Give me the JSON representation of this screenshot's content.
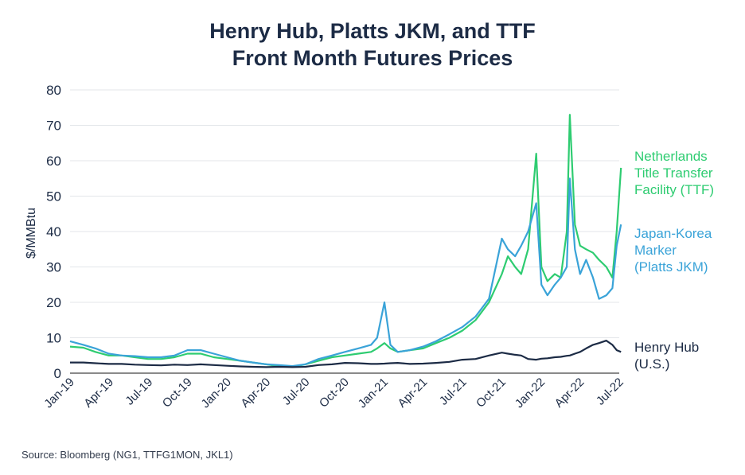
{
  "chart_data": {
    "type": "line",
    "title": "Henry Hub, Platts JKM, and TTF",
    "subtitle": "Front Month Futures Prices",
    "ylabel": "$/MMBtu",
    "xlabel": "",
    "ylim": [
      0,
      80
    ],
    "yticks": [
      0,
      10,
      20,
      30,
      40,
      50,
      60,
      70,
      80
    ],
    "xlim": [
      "2019-01",
      "2022-07"
    ],
    "xticks": [
      "Jan-19",
      "Apr-19",
      "Jul-19",
      "Oct-19",
      "Jan-20",
      "Apr-20",
      "Jul-20",
      "Oct-20",
      "Jan-21",
      "Apr-21",
      "Jul-21",
      "Oct-21",
      "Jan-22",
      "Apr-22",
      "Jul-22"
    ],
    "grid": "horizontal",
    "legend": "inline-right",
    "x": [
      "2019-01-01",
      "2019-02-01",
      "2019-03-01",
      "2019-04-01",
      "2019-05-01",
      "2019-06-01",
      "2019-07-01",
      "2019-08-01",
      "2019-09-01",
      "2019-10-01",
      "2019-11-01",
      "2019-12-01",
      "2020-01-01",
      "2020-02-01",
      "2020-03-01",
      "2020-04-01",
      "2020-05-01",
      "2020-06-01",
      "2020-07-01",
      "2020-08-01",
      "2020-09-01",
      "2020-10-01",
      "2020-11-01",
      "2020-12-01",
      "2020-12-15",
      "2021-01-01",
      "2021-01-15",
      "2021-02-01",
      "2021-03-01",
      "2021-04-01",
      "2021-05-01",
      "2021-06-01",
      "2021-07-01",
      "2021-08-01",
      "2021-09-01",
      "2021-10-01",
      "2021-10-15",
      "2021-11-01",
      "2021-11-15",
      "2021-12-01",
      "2021-12-20",
      "2022-01-01",
      "2022-01-15",
      "2022-02-01",
      "2022-02-15",
      "2022-03-01",
      "2022-03-08",
      "2022-03-20",
      "2022-04-01",
      "2022-04-15",
      "2022-05-01",
      "2022-05-15",
      "2022-06-01",
      "2022-06-15",
      "2022-06-25",
      "2022-07-05"
    ],
    "series": [
      {
        "name": "Netherlands Title Transfer Facility (TTF)",
        "color": "#2ecc71",
        "values": [
          7.5,
          7.2,
          6.0,
          5.0,
          5.0,
          4.5,
          4.0,
          4.0,
          4.5,
          5.5,
          5.5,
          4.5,
          4.0,
          3.5,
          3.0,
          2.5,
          2.0,
          1.8,
          2.5,
          3.5,
          4.5,
          5.0,
          5.5,
          6.0,
          7.0,
          8.5,
          7.0,
          6.0,
          6.5,
          7.0,
          8.5,
          10.0,
          12.0,
          15.0,
          20.0,
          28.0,
          33.0,
          30.0,
          28.0,
          35.0,
          62.0,
          30.0,
          26.0,
          28.0,
          27.0,
          40.0,
          73.0,
          42.0,
          36.0,
          35.0,
          34.0,
          32.0,
          30.0,
          27.0,
          40.0,
          58.0
        ]
      },
      {
        "name": "Japan-Korea Marker (Platts JKM)",
        "color": "#3aa3d8",
        "values": [
          9.0,
          8.0,
          7.0,
          5.5,
          5.0,
          4.8,
          4.5,
          4.5,
          5.0,
          6.5,
          6.5,
          5.5,
          4.5,
          3.5,
          3.0,
          2.5,
          2.3,
          2.0,
          2.5,
          4.0,
          5.0,
          6.0,
          7.0,
          8.0,
          10.0,
          20.0,
          8.0,
          6.0,
          6.5,
          7.5,
          9.0,
          11.0,
          13.0,
          16.0,
          21.0,
          38.0,
          35.0,
          33.0,
          36.0,
          40.0,
          48.0,
          25.0,
          22.0,
          25.0,
          27.0,
          30.0,
          55.0,
          35.0,
          28.0,
          32.0,
          27.0,
          21.0,
          22.0,
          24.0,
          36.0,
          42.0
        ]
      },
      {
        "name": "Henry Hub (U.S.)",
        "color": "#1c2b45",
        "values": [
          3.0,
          3.0,
          2.8,
          2.6,
          2.6,
          2.4,
          2.3,
          2.2,
          2.4,
          2.3,
          2.5,
          2.3,
          2.1,
          1.9,
          1.8,
          1.7,
          1.8,
          1.7,
          1.8,
          2.3,
          2.5,
          2.9,
          2.8,
          2.6,
          2.6,
          2.7,
          2.8,
          2.9,
          2.6,
          2.7,
          2.9,
          3.2,
          3.8,
          4.0,
          5.0,
          5.8,
          5.5,
          5.2,
          5.0,
          4.0,
          3.8,
          4.1,
          4.2,
          4.5,
          4.6,
          4.9,
          5.0,
          5.5,
          6.0,
          7.0,
          8.0,
          8.5,
          9.2,
          8.0,
          6.5,
          6.0
        ]
      }
    ],
    "labels": [
      {
        "lines": [
          "Netherlands",
          "Title Transfer",
          "Facility (TTF)"
        ],
        "color": "#2ecc71"
      },
      {
        "lines": [
          "Japan-Korea",
          "Marker",
          "(Platts JKM)"
        ],
        "color": "#3aa3d8"
      },
      {
        "lines": [
          "Henry Hub",
          "(U.S.)"
        ],
        "color": "#1c2b45"
      }
    ]
  },
  "source_note": "Source: Bloomberg (NG1, TTFG1MON, JKL1)"
}
